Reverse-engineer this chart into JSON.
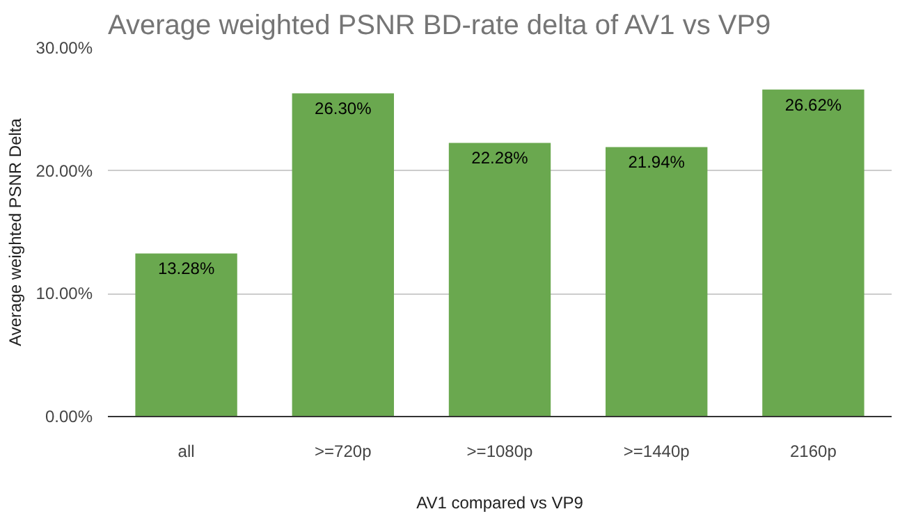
{
  "chart_data": {
    "type": "bar",
    "title": "Average weighted PSNR BD-rate delta of AV1 vs VP9",
    "xlabel": "AV1 compared vs VP9",
    "ylabel": "Average weighted PSNR Delta",
    "categories": [
      "all",
      ">=720p",
      ">=1080p",
      ">=1440p",
      "2160p"
    ],
    "values": [
      13.28,
      26.3,
      22.28,
      21.94,
      26.62
    ],
    "value_labels": [
      "13.28%",
      "26.30%",
      "22.28%",
      "21.94%",
      "26.62%"
    ],
    "color": "#6aa84f",
    "ylim": [
      0,
      30
    ],
    "yticks": [
      {
        "value": 0,
        "label": "0.00%"
      },
      {
        "value": 10,
        "label": "10.00%"
      },
      {
        "value": 20,
        "label": "20.00%"
      },
      {
        "value": 30,
        "label": "30.00%"
      }
    ],
    "grid": "y"
  }
}
